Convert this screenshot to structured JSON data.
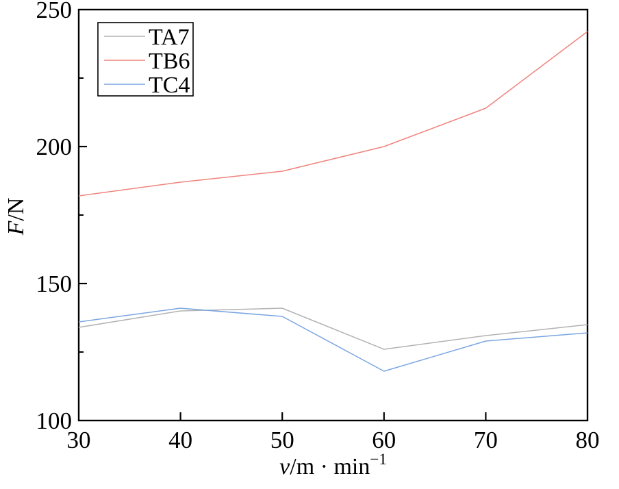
{
  "chart_data": {
    "type": "line",
    "x": [
      30,
      40,
      50,
      60,
      70,
      80
    ],
    "series": [
      {
        "name": "TA7",
        "color": "#b2b2b2",
        "values": [
          134,
          140,
          141,
          126,
          131,
          135
        ]
      },
      {
        "name": "TB6",
        "color": "#f0837c",
        "values": [
          182,
          187,
          191,
          200,
          214,
          242
        ]
      },
      {
        "name": "TC4",
        "color": "#7aa5e2",
        "values": [
          136,
          141,
          138,
          118,
          129,
          132
        ]
      }
    ],
    "title": "",
    "xlabel": {
      "variable": "v",
      "rest": "/m · min",
      "superscript": "−1"
    },
    "ylabel": {
      "variable": "F",
      "rest": "/N"
    },
    "xlim": [
      30,
      80
    ],
    "ylim": [
      100,
      250
    ],
    "xticks": {
      "major": [
        30,
        40,
        50,
        60,
        70,
        80
      ],
      "minor": []
    },
    "yticks": {
      "major": [
        100,
        150,
        200,
        250
      ],
      "minor": [
        125,
        175,
        225
      ]
    },
    "grid": false,
    "legend_position": "top-left",
    "axis_color": "#000000",
    "background_color": "#ffffff"
  }
}
